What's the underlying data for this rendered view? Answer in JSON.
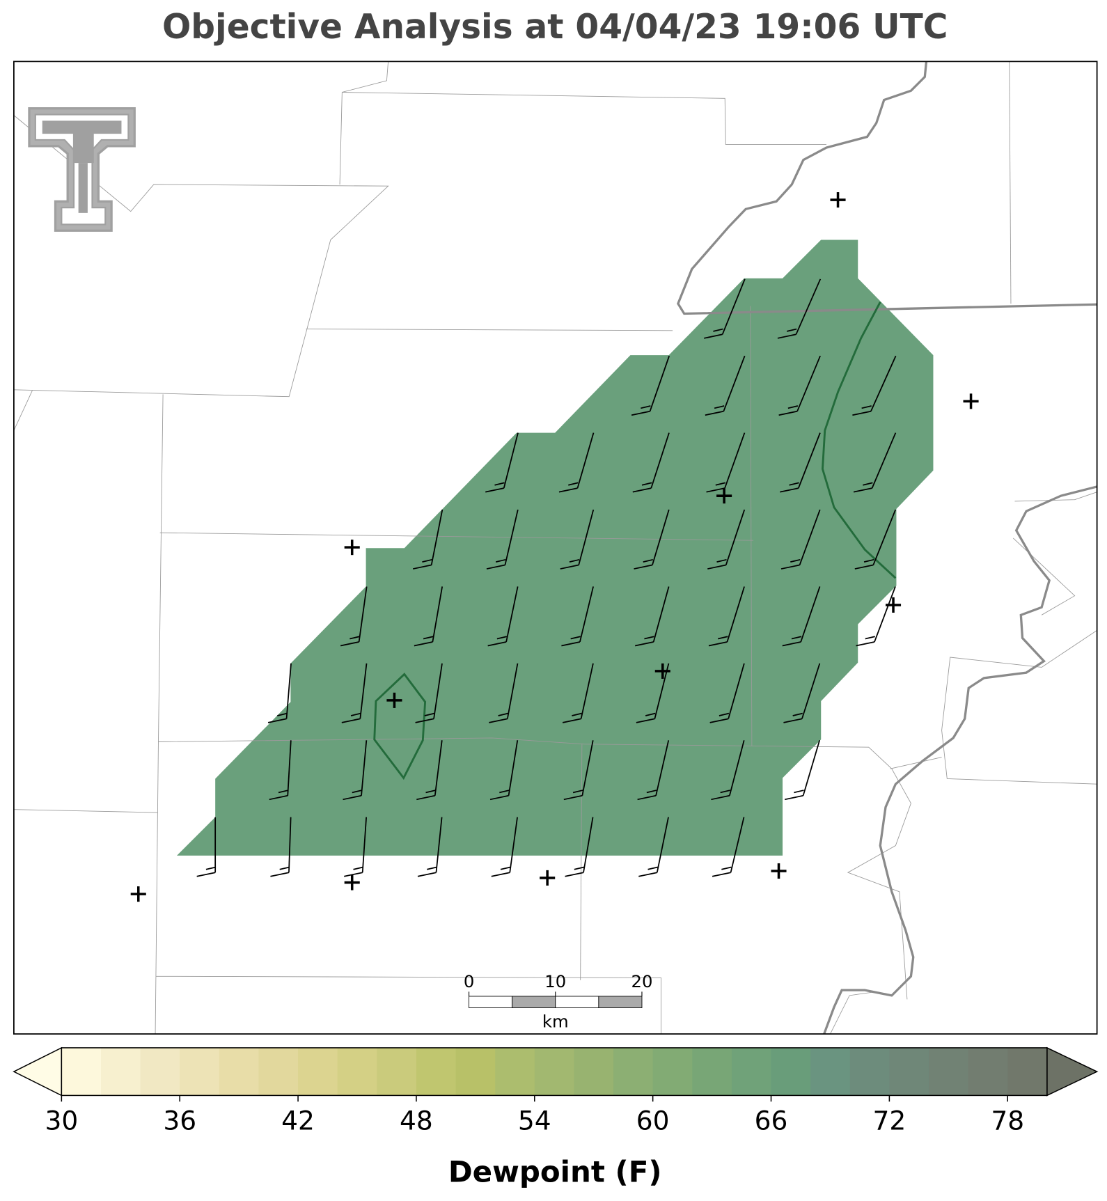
{
  "title": "Objective Analysis at 04/04/23 19:06 UTC",
  "scale_bar": {
    "ticks": [
      0,
      10,
      20
    ],
    "unit": "km"
  },
  "colorbar": {
    "label": "Dewpoint (F)",
    "levels": [
      30,
      32,
      34,
      36,
      38,
      40,
      42,
      44,
      46,
      48,
      50,
      52,
      54,
      56,
      58,
      60,
      62,
      64,
      66,
      68,
      70,
      72,
      74,
      76,
      78,
      80
    ],
    "ticks": [
      30,
      36,
      42,
      48,
      54,
      60,
      66,
      72,
      78
    ],
    "colors": [
      "#fdf8dc",
      "#f7f0cf",
      "#f1e8c3",
      "#ede3b6",
      "#e8dda8",
      "#e2d89d",
      "#dcd490",
      "#d4d085",
      "#cacb7c",
      "#c0c66f",
      "#b8c168",
      "#acbd6e",
      "#a2b870",
      "#98b370",
      "#8caf73",
      "#82ab74",
      "#78a676",
      "#70a279",
      "#699d7a",
      "#6a9480",
      "#6d8c7c",
      "#6f8778",
      "#718274",
      "#727d70",
      "#71786b"
    ],
    "under_color": "#fffce6",
    "over_color": "#6d7266"
  }
}
